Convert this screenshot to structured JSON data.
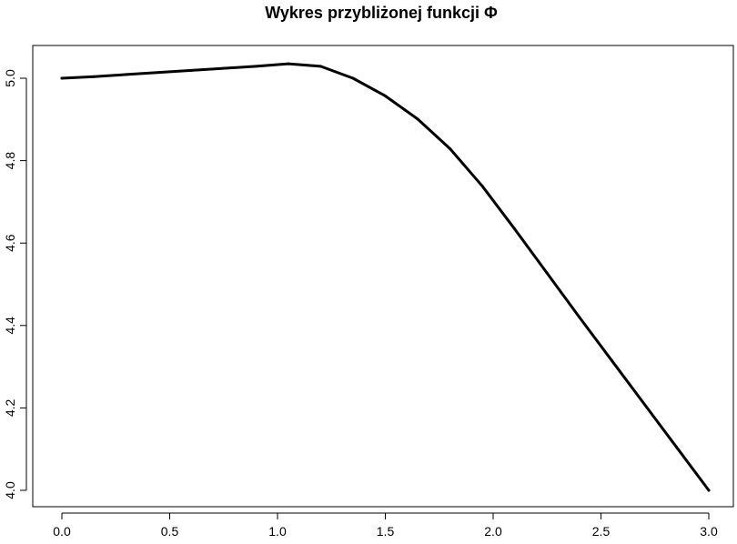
{
  "chart_data": {
    "type": "line",
    "title": "Wykres przybliżonej funkcji Φ",
    "xlabel": "",
    "ylabel": "",
    "xlim": [
      0,
      3
    ],
    "ylim": [
      4.0,
      5.0
    ],
    "xticks": [
      0,
      0.5,
      1,
      1.5,
      2,
      2.5,
      3
    ],
    "xtick_labels": [
      "0.0",
      "0.5",
      "1.0",
      "1.5",
      "2.0",
      "2.5",
      "3.0"
    ],
    "yticks": [
      4.0,
      4.2,
      4.4,
      4.6,
      4.8,
      5.0
    ],
    "ytick_labels": [
      "4.0",
      "4.2",
      "4.4",
      "4.6",
      "4.8",
      "5.0"
    ],
    "grid": false,
    "series_color": "#000000",
    "series": [
      {
        "x": [
          0,
          0.15,
          0.3,
          0.45,
          0.6,
          0.75,
          0.9,
          1.05,
          1.2,
          1.35,
          1.5,
          1.65,
          1.8,
          1.95,
          2.1,
          2.25,
          2.4,
          2.55,
          2.7,
          2.85,
          3.0
        ],
        "y": [
          5.0,
          5.004,
          5.009,
          5.014,
          5.019,
          5.024,
          5.029,
          5.035,
          5.029,
          5.0,
          4.957,
          4.901,
          4.829,
          4.738,
          4.634,
          4.527,
          4.42,
          4.315,
          4.21,
          4.105,
          4.0
        ]
      }
    ]
  }
}
